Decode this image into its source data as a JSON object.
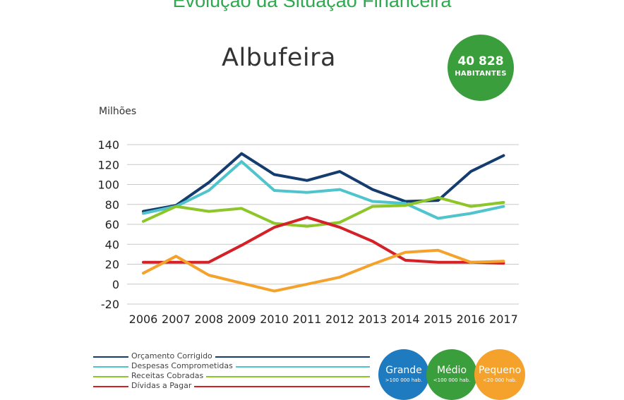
{
  "page_title": "Evolução da Situação Financeira",
  "city": "Albufeira",
  "population": {
    "value": "40 828",
    "label": "HABITANTES"
  },
  "colors": {
    "title": "#2fa84f",
    "badge": "#3a9e3c",
    "grande": "#1f7bbf",
    "medio": "#3a9e3c",
    "pequeno": "#f5a22d"
  },
  "chart_data": {
    "type": "line",
    "unit_label": "Milhões",
    "x": [
      "2006",
      "2007",
      "2008",
      "2009",
      "2010",
      "2011",
      "2012",
      "2013",
      "2014",
      "2015",
      "2016",
      "2017"
    ],
    "ylim": [
      -20,
      140
    ],
    "yticks": [
      140,
      120,
      100,
      80,
      60,
      40,
      20,
      0,
      -20
    ],
    "grid": true,
    "legend_position": "bottom",
    "series": [
      {
        "name": "Orçamento Corrigido",
        "color": "#153c6e",
        "values": [
          73,
          79,
          102,
          131,
          110,
          104,
          113,
          95,
          83,
          84,
          113,
          129
        ]
      },
      {
        "name": "Despesas Comprometidas",
        "color": "#4fc4cc",
        "values": [
          71,
          78,
          94,
          123,
          94,
          92,
          95,
          83,
          81,
          66,
          71,
          78
        ]
      },
      {
        "name": "Receitas Cobradas",
        "color": "#8cc629",
        "values": [
          63,
          78,
          73,
          76,
          61,
          58,
          62,
          78,
          79,
          87,
          78,
          82
        ]
      },
      {
        "name": "Dívidas a Pagar",
        "color": "#d42027",
        "values": [
          22,
          22,
          22,
          39,
          57,
          67,
          57,
          43,
          24,
          22,
          22,
          21
        ]
      },
      {
        "name": "",
        "color": "#f5a22d",
        "values": [
          11,
          28,
          9,
          1,
          -7,
          0,
          7,
          20,
          32,
          34,
          22,
          23
        ]
      }
    ]
  },
  "size_badges": [
    {
      "name": "Grande",
      "sub": ">100 000 hab."
    },
    {
      "name": "Médio",
      "sub": "<100 000 hab."
    },
    {
      "name": "Pequeno",
      "sub": "<20 000 hab."
    }
  ]
}
